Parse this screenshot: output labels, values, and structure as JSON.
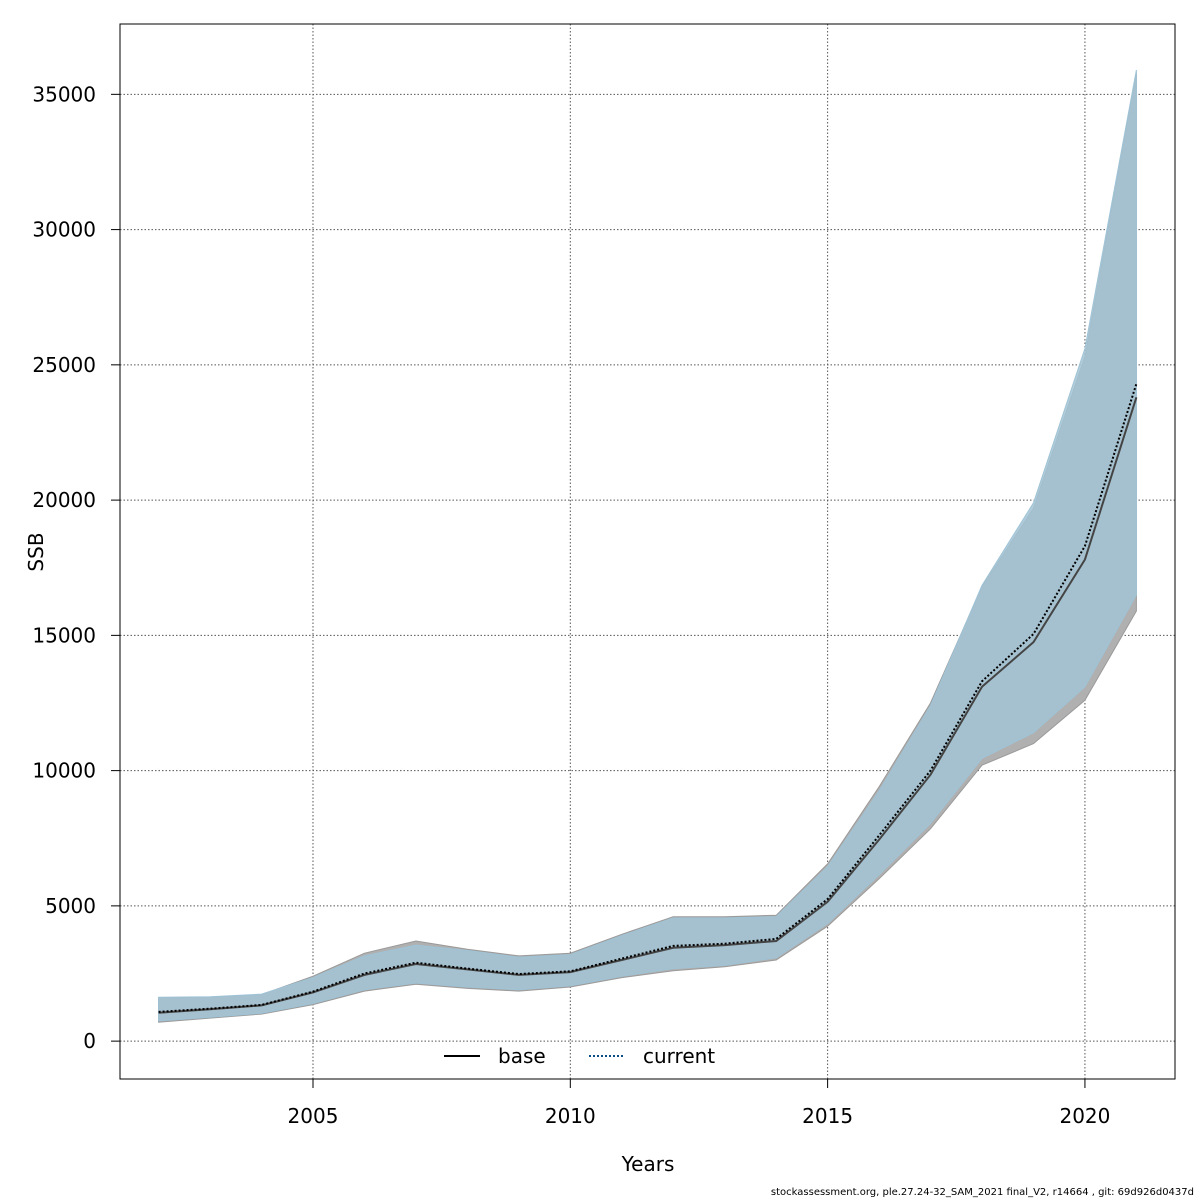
{
  "chart_data": {
    "type": "line",
    "xlabel": "Years",
    "ylabel": "SSB",
    "xlim": [
      2001.25,
      2021.75
    ],
    "ylim": [
      -1400,
      37600
    ],
    "x_ticks": [
      2005,
      2010,
      2015,
      2020
    ],
    "y_ticks": [
      0,
      5000,
      10000,
      15000,
      20000,
      25000,
      30000,
      35000
    ],
    "grid": true,
    "legend_position": "bottom",
    "x": [
      2002,
      2003,
      2004,
      2005,
      2006,
      2007,
      2008,
      2009,
      2010,
      2011,
      2012,
      2013,
      2014,
      2015,
      2016,
      2017,
      2018,
      2019,
      2020,
      2021
    ],
    "series": [
      {
        "name": "base",
        "line_style": "solid",
        "line_color": "#000000",
        "band_color": "#b0b0b0",
        "values": [
          1050,
          1180,
          1320,
          1800,
          2450,
          2850,
          2650,
          2450,
          2550,
          3000,
          3450,
          3550,
          3700,
          5150,
          7450,
          9850,
          13100,
          14750,
          17800,
          23800
        ],
        "lower": [
          700,
          850,
          1000,
          1350,
          1850,
          2100,
          1950,
          1850,
          2000,
          2350,
          2600,
          2750,
          3000,
          4250,
          6000,
          7850,
          10200,
          11000,
          12600,
          15900
        ],
        "upper": [
          1600,
          1620,
          1720,
          2400,
          3250,
          3700,
          3400,
          3150,
          3250,
          3950,
          4600,
          4600,
          4650,
          6550,
          9400,
          12500,
          16800,
          19700,
          25300,
          35800
        ]
      },
      {
        "name": "current",
        "line_style": "dotted",
        "line_color": "#0b4f8a",
        "band_color": "#a9d2e8",
        "values": [
          1080,
          1200,
          1340,
          1830,
          2500,
          2900,
          2680,
          2480,
          2580,
          3050,
          3520,
          3600,
          3780,
          5250,
          7600,
          10000,
          13300,
          15050,
          18300,
          24300
        ],
        "lower": [
          750,
          880,
          1030,
          1390,
          1900,
          2150,
          2000,
          1900,
          2050,
          2400,
          2680,
          2800,
          3080,
          4350,
          6150,
          8050,
          10450,
          11400,
          13100,
          16500
        ],
        "upper": [
          1620,
          1640,
          1740,
          2350,
          3150,
          3550,
          3350,
          3100,
          3200,
          3900,
          4550,
          4550,
          4600,
          6450,
          9250,
          12400,
          16850,
          19900,
          25600,
          35900
        ]
      }
    ],
    "band_overlap_color": "#a3c4d5"
  },
  "footer": "stockassessment.org, ple.27.24-32_SAM_2021 final_V2, r14664 , git: 69d926d0437d"
}
